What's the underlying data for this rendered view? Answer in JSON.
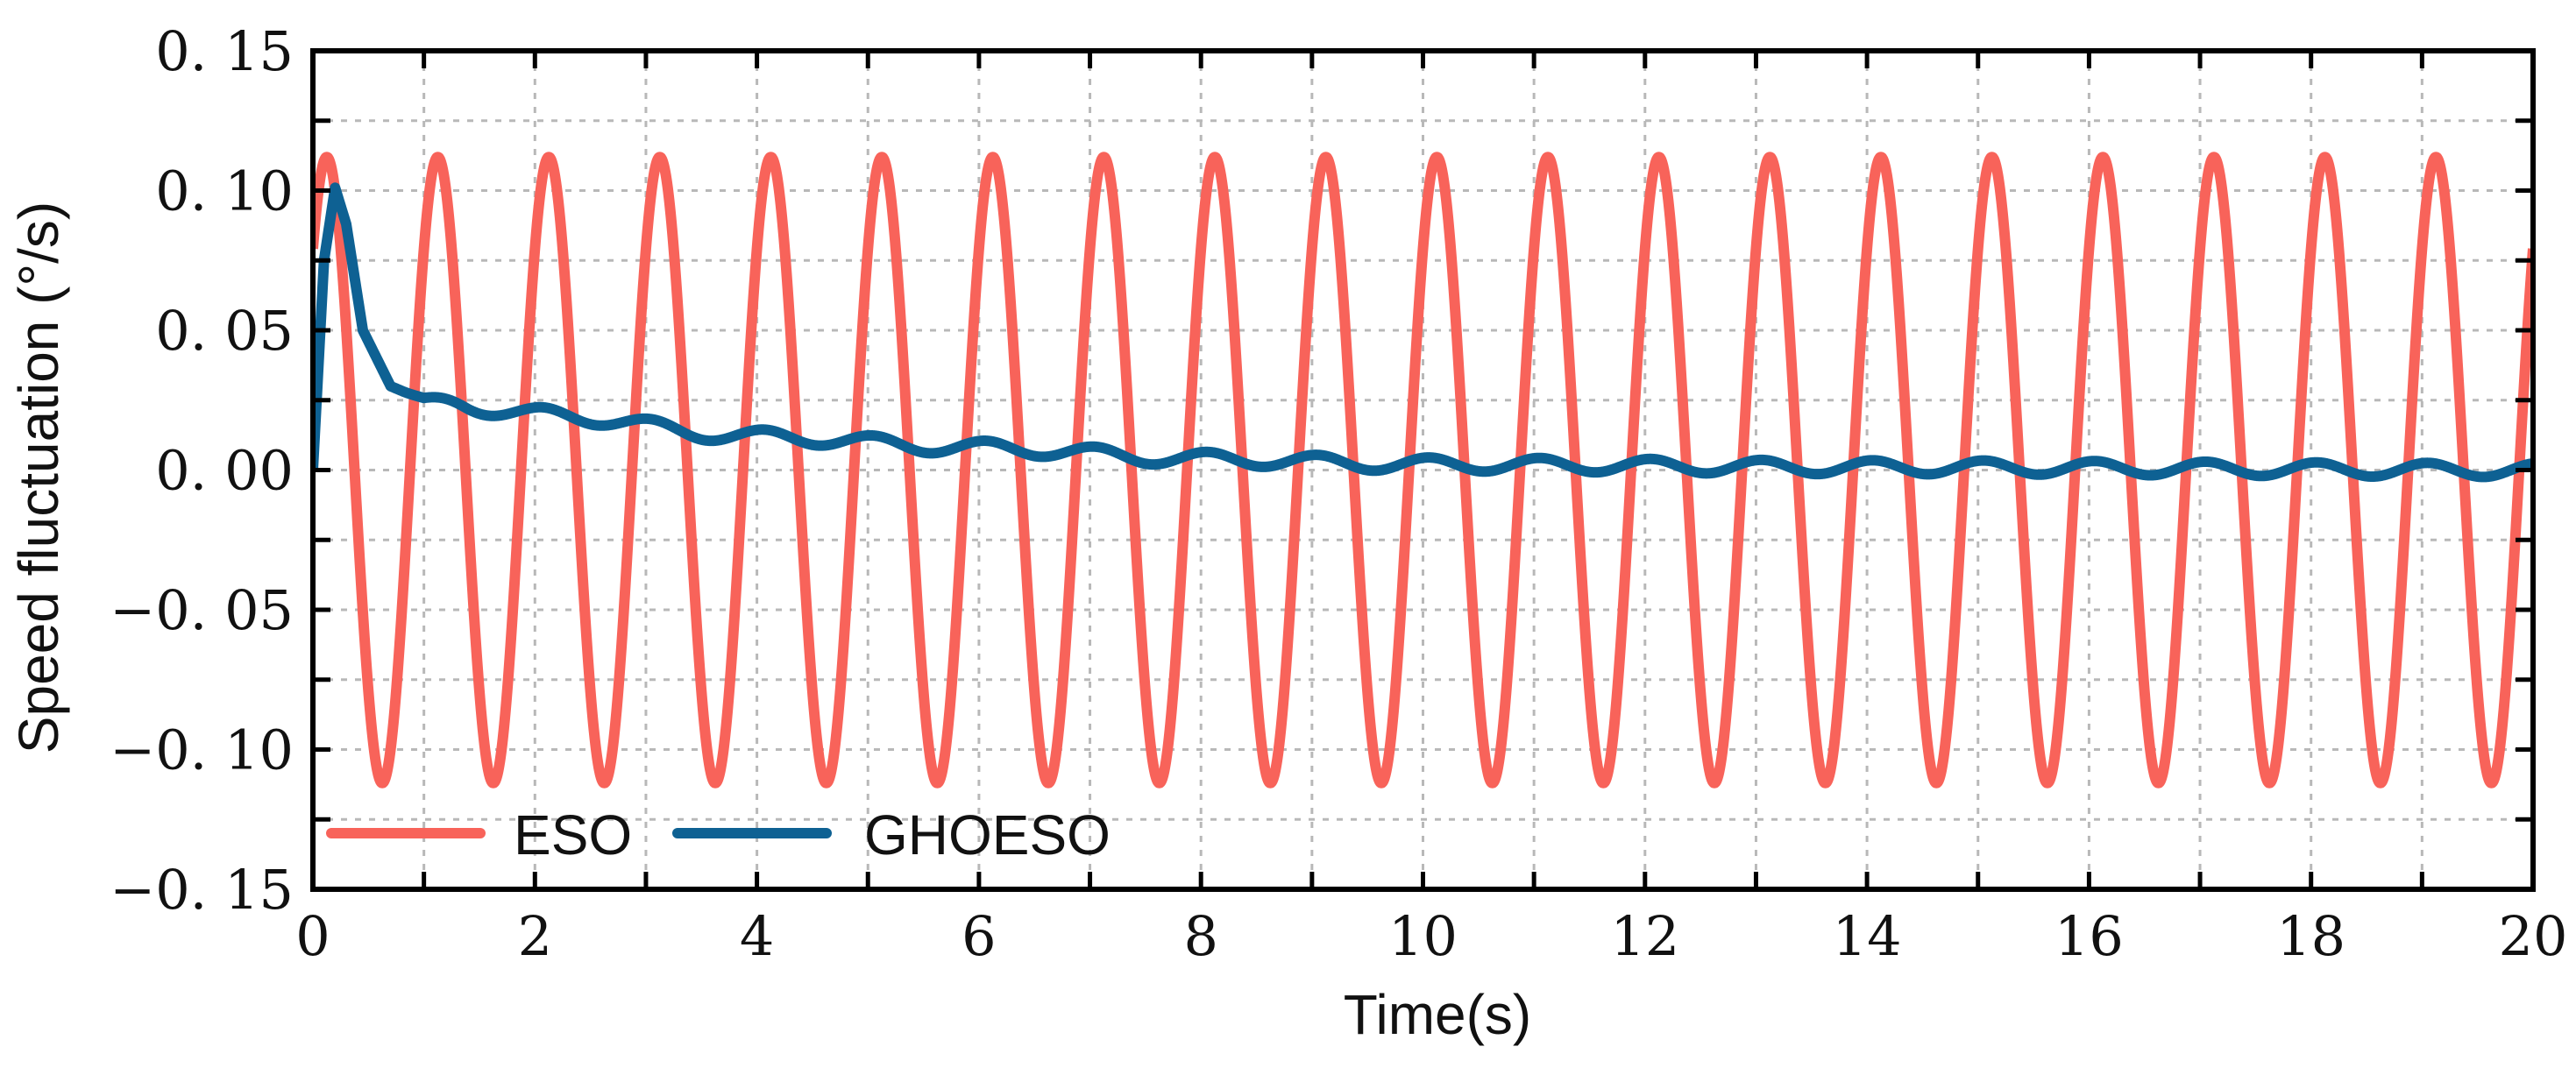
{
  "chart_data": {
    "type": "line",
    "title": "",
    "xlabel": "Time(s)",
    "ylabel": "Speed fluctuation (°/s)",
    "xlim": [
      0,
      20
    ],
    "ylim": [
      -0.15,
      0.15
    ],
    "xticks": [
      0,
      2,
      4,
      6,
      8,
      10,
      12,
      14,
      16,
      18,
      20
    ],
    "xtick_labels": [
      "0",
      "2",
      "4",
      "6",
      "8",
      "10",
      "12",
      "14",
      "16",
      "18",
      "20"
    ],
    "yticks": [
      0.15,
      0.1,
      0.05,
      0.0,
      -0.05,
      -0.1,
      -0.15
    ],
    "ytick_labels": [
      "0. 15",
      "0. 10",
      "0. 05",
      "0. 00",
      "−0. 05",
      "−0. 10",
      "−0. 15"
    ],
    "grid": true,
    "legend_position": "bottom-left",
    "series": [
      {
        "name": "ESO",
        "color": "#F8635A",
        "description": "sinusoid, amplitude 0.112, period 1.0 s",
        "amplitude": 0.112,
        "period": 1.0,
        "phase_shift": 0.125,
        "x_start": 0.0,
        "x_end": 20.0
      },
      {
        "name": "GHOESO",
        "color": "#0E6193",
        "description": "rises from 0 to peak ~0.101 at t=0.2, decays to ~0.025 by t=1, then slow decay with small ripple",
        "key_points": [
          [
            0,
            0.0
          ],
          [
            0.1,
            0.075
          ],
          [
            0.2,
            0.101
          ],
          [
            0.3,
            0.088
          ],
          [
            0.45,
            0.05
          ],
          [
            0.7,
            0.03
          ],
          [
            1.0,
            0.025
          ],
          [
            2.0,
            0.02
          ],
          [
            4.0,
            0.012
          ],
          [
            6.0,
            0.008
          ],
          [
            8.0,
            0.004
          ],
          [
            10.0,
            0.002
          ],
          [
            14.0,
            0.001
          ],
          [
            20.0,
            0.0
          ]
        ],
        "ripple_amplitude": 0.0025,
        "ripple_period": 1.0,
        "x_start": 0.0,
        "x_end": 20.0
      }
    ]
  }
}
